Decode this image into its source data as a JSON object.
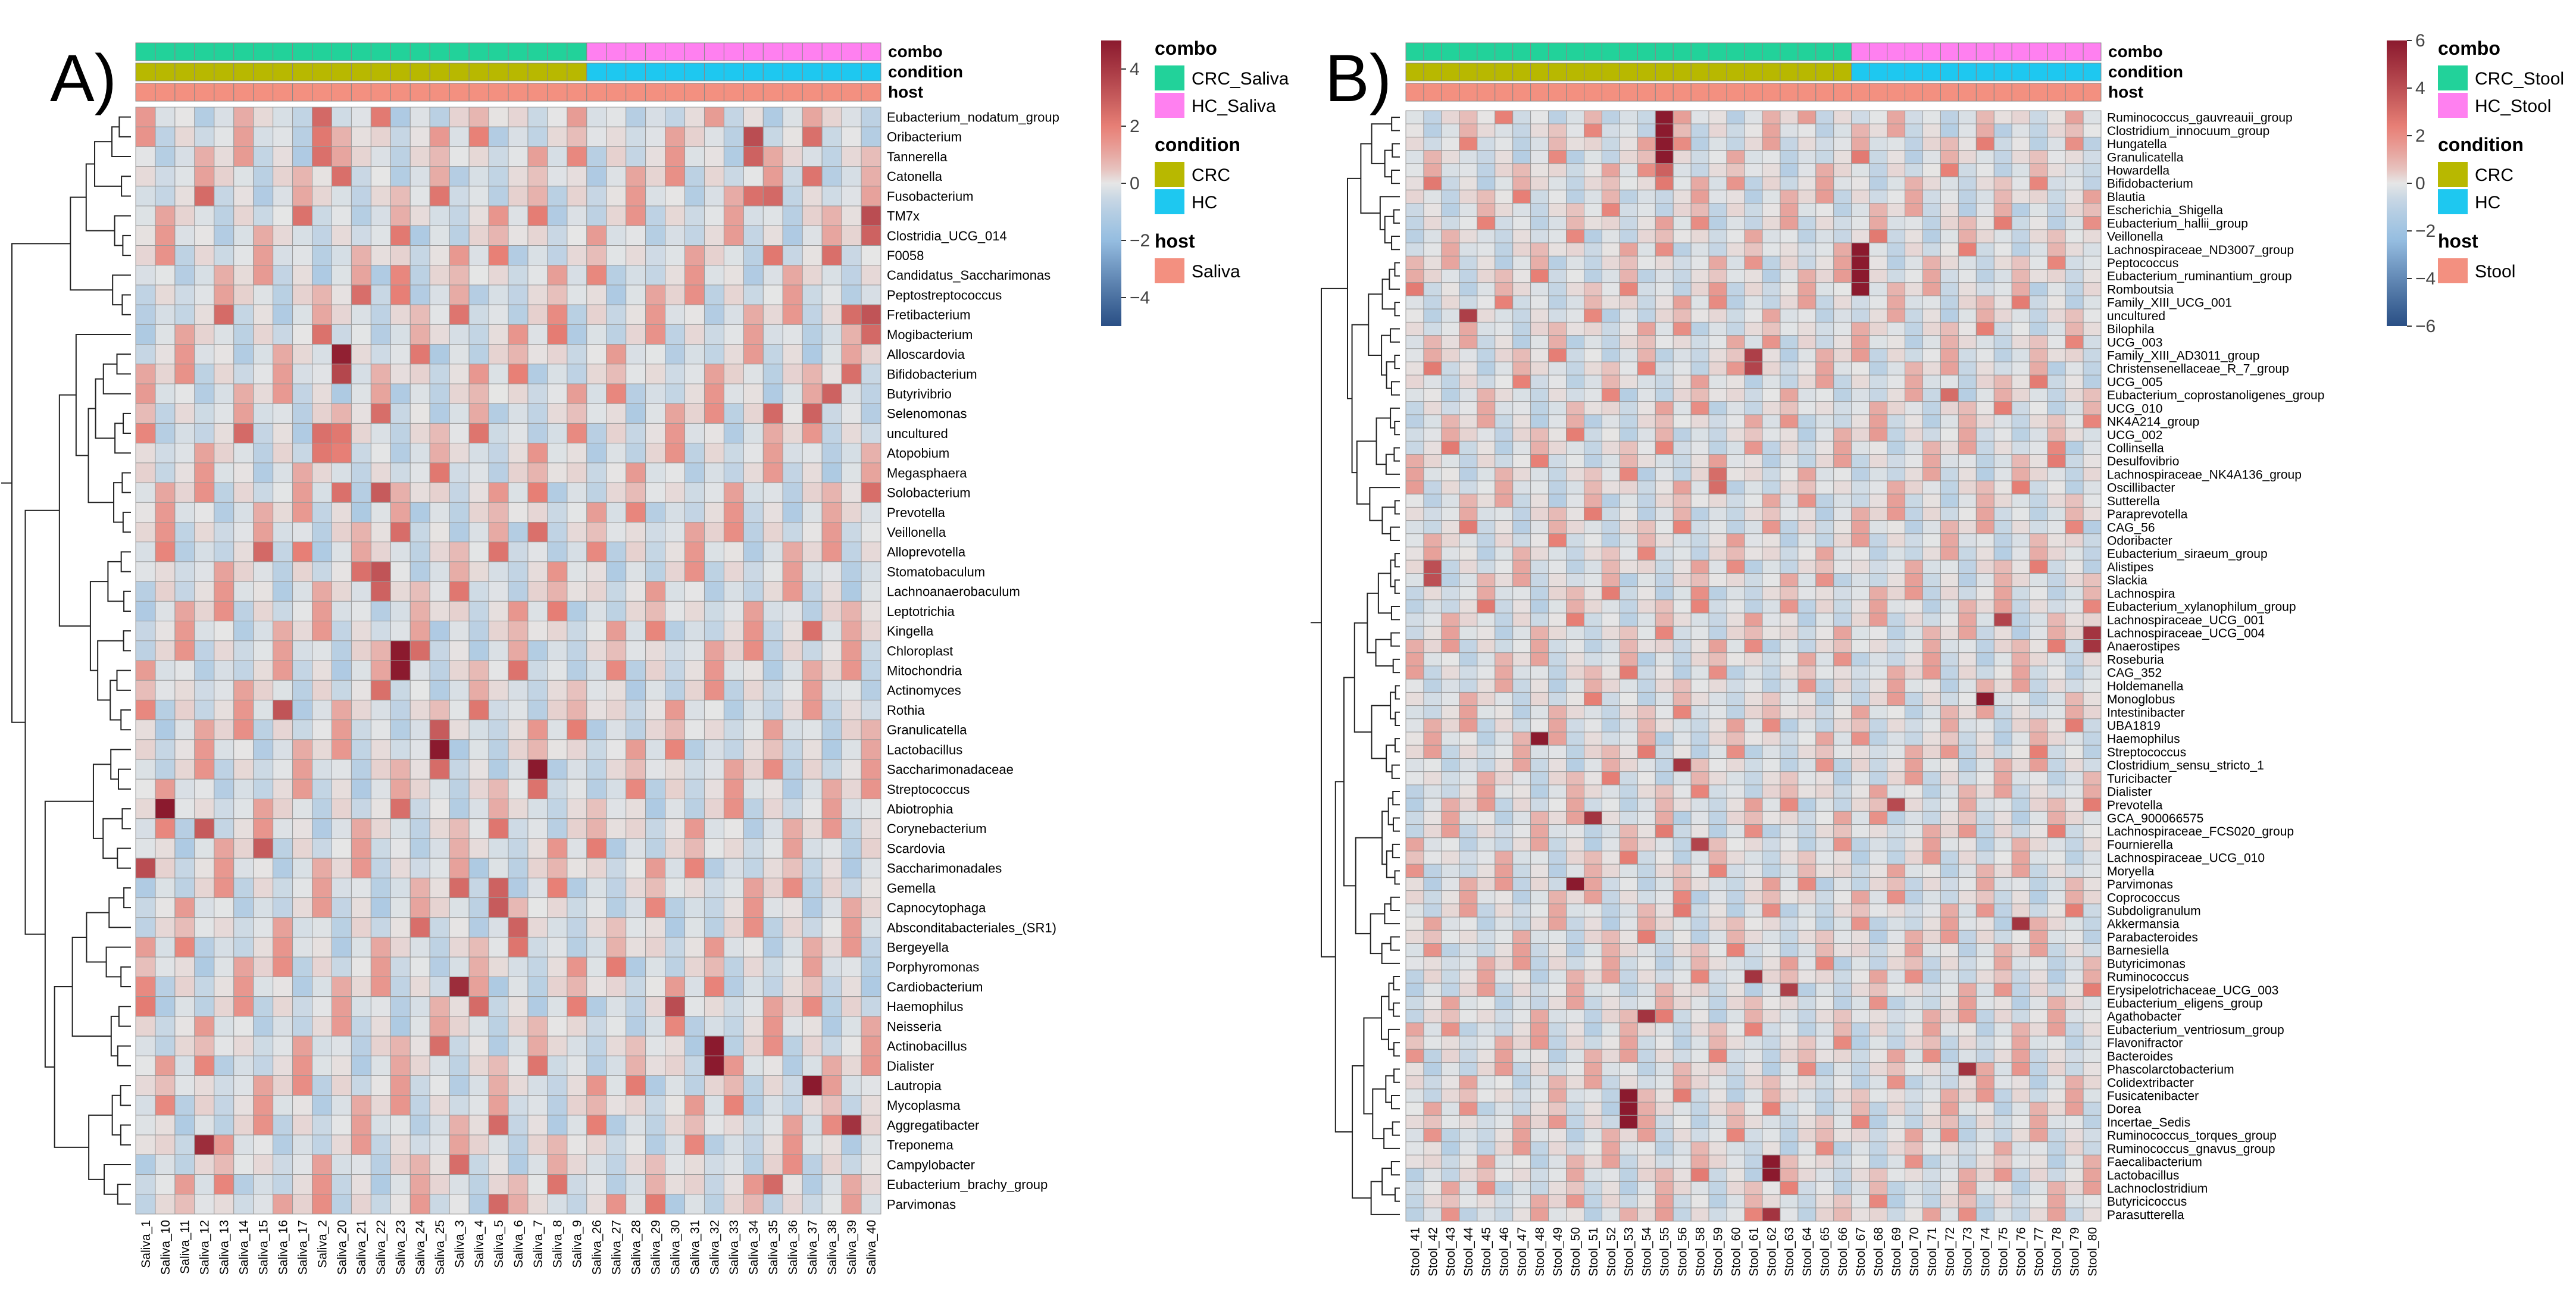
{
  "chart_data": [
    {
      "panel_label": "A)",
      "type": "heatmap",
      "title": "",
      "samples": [
        "Saliva_1",
        "Saliva_10",
        "Saliva_11",
        "Saliva_12",
        "Saliva_13",
        "Saliva_14",
        "Saliva_15",
        "Saliva_16",
        "Saliva_17",
        "Saliva_2",
        "Saliva_20",
        "Saliva_21",
        "Saliva_22",
        "Saliva_23",
        "Saliva_24",
        "Saliva_25",
        "Saliva_3",
        "Saliva_4",
        "Saliva_5",
        "Saliva_6",
        "Saliva_7",
        "Saliva_8",
        "Saliva_9",
        "Saliva_26",
        "Saliva_27",
        "Saliva_28",
        "Saliva_29",
        "Saliva_30",
        "Saliva_31",
        "Saliva_32",
        "Saliva_33",
        "Saliva_34",
        "Saliva_35",
        "Saliva_36",
        "Saliva_37",
        "Saliva_38",
        "Saliva_39",
        "Saliva_40"
      ],
      "taxa": [
        "Eubacterium_nodatum_group",
        "Oribacterium",
        "Tannerella",
        "Catonella",
        "Fusobacterium",
        "TM7x",
        "Clostridia_UCG_014",
        "F0058",
        "Candidatus_Saccharimonas",
        "Peptostreptococcus",
        "Fretibacterium",
        "Mogibacterium",
        "Alloscardovia",
        "Bifidobacterium",
        "Butyrivibrio",
        "Selenomonas",
        "uncultured",
        "Atopobium",
        "Megasphaera",
        "Solobacterium",
        "Prevotella",
        "Veillonella",
        "Alloprevotella",
        "Stomatobaculum",
        "Lachnoanaerobaculum",
        "Leptotrichia",
        "Kingella",
        "Chloroplast",
        "Mitochondria",
        "Actinomyces",
        "Rothia",
        "Granulicatella",
        "Lactobacillus",
        "Saccharimonadaceae",
        "Streptococcus",
        "Abiotrophia",
        "Corynebacterium",
        "Scardovia",
        "Saccharimonadales",
        "Gemella",
        "Capnocytophaga",
        "Absconditabacteriales_(SR1)",
        "Bergeyella",
        "Porphyromonas",
        "Cardiobacterium",
        "Haemophilus",
        "Neisseria",
        "Actinobacillus",
        "Dialister",
        "Lautropia",
        "Mycoplasma",
        "Aggregatibacter",
        "Treponema",
        "Campylobacter",
        "Eubacterium_brachy_group",
        "Parvimonas"
      ],
      "annotation_labels": [
        "combo",
        "condition",
        "host"
      ],
      "annotations": {
        "combo": {
          "split": 23,
          "levels": [
            "CRC_Saliva",
            "HC_Saliva"
          ]
        },
        "condition": {
          "split": 23,
          "levels": [
            "CRC",
            "HC"
          ]
        },
        "host": {
          "levels": [
            "Saliva"
          ]
        }
      },
      "legend": {
        "color_scale_ticks": [
          "4",
          "2",
          "0",
          "−2",
          "−4"
        ],
        "color_range": [
          -5,
          5
        ],
        "combo_title": "combo",
        "combo_items": [
          "CRC_Saliva",
          "HC_Saliva"
        ],
        "condition_title": "condition",
        "condition_items": [
          "CRC",
          "HC"
        ],
        "host_title": "host",
        "host_items": [
          "Saliva"
        ]
      },
      "hotspots": [
        {
          "taxon": "Eubacterium_nodatum_group",
          "sample": "Saliva_2",
          "value": 2.6
        },
        {
          "taxon": "Oribacterium",
          "sample": "Saliva_2",
          "value": 2.2
        },
        {
          "taxon": "Oribacterium",
          "sample": "Saliva_34",
          "value": 3.4
        },
        {
          "taxon": "Tannerella",
          "sample": "Saliva_2",
          "value": 2.4
        },
        {
          "taxon": "Tannerella",
          "sample": "Saliva_34",
          "value": 2.8
        },
        {
          "taxon": "Catonella",
          "sample": "Saliva_37",
          "value": 2.3
        },
        {
          "taxon": "Fusobacterium",
          "sample": "Saliva_34",
          "value": 2.4
        },
        {
          "taxon": "Fusobacterium",
          "sample": "Saliva_35",
          "value": 2.6
        },
        {
          "taxon": "TM7x",
          "sample": "Saliva_40",
          "value": 3.4
        },
        {
          "taxon": "Clostridia_UCG_014",
          "sample": "Saliva_40",
          "value": 2.8
        },
        {
          "taxon": "F0058",
          "sample": "Saliva_35",
          "value": 2.2
        },
        {
          "taxon": "Candidatus_Saccharimonas",
          "sample": "Saliva_23",
          "value": 1.8
        },
        {
          "taxon": "Peptostreptococcus",
          "sample": "Saliva_23",
          "value": 2.0
        },
        {
          "taxon": "Fretibacterium",
          "sample": "Saliva_39",
          "value": 2.5
        },
        {
          "taxon": "Fretibacterium",
          "sample": "Saliva_40",
          "value": 3.2
        },
        {
          "taxon": "Mogibacterium",
          "sample": "Saliva_40",
          "value": 2.6
        },
        {
          "taxon": "Alloscardovia",
          "sample": "Saliva_20",
          "value": 4.8
        },
        {
          "taxon": "Bifidobacterium",
          "sample": "Saliva_20",
          "value": 3.6
        },
        {
          "taxon": "Butyrivibrio",
          "sample": "Saliva_38",
          "value": 2.8
        },
        {
          "taxon": "Selenomonas",
          "sample": "Saliva_35",
          "value": 2.6
        },
        {
          "taxon": "Selenomonas",
          "sample": "Saliva_37",
          "value": 2.8
        },
        {
          "taxon": "uncultured",
          "sample": "Saliva_2",
          "value": 2.4
        },
        {
          "taxon": "uncultured",
          "sample": "Saliva_20",
          "value": 2.2
        },
        {
          "taxon": "Atopobium",
          "sample": "Saliva_2",
          "value": 2.2
        },
        {
          "taxon": "Atopobium",
          "sample": "Saliva_20",
          "value": 2.0
        },
        {
          "taxon": "Solobacterium",
          "sample": "Saliva_20",
          "value": 2.4
        },
        {
          "taxon": "Solobacterium",
          "sample": "Saliva_22",
          "value": 3.0
        },
        {
          "taxon": "Veillonella",
          "sample": "Saliva_7",
          "value": 2.4
        },
        {
          "taxon": "Alloprevotella",
          "sample": "Saliva_17",
          "value": 2.0
        },
        {
          "taxon": "Stomatobaculum",
          "sample": "Saliva_22",
          "value": 3.2
        },
        {
          "taxon": "Lachnoanaerobaculum",
          "sample": "Saliva_22",
          "value": 2.8
        },
        {
          "taxon": "Kingella",
          "sample": "Saliva_37",
          "value": 2.4
        },
        {
          "taxon": "Chloroplast",
          "sample": "Saliva_23",
          "value": 5.0
        },
        {
          "taxon": "Mitochondria",
          "sample": "Saliva_23",
          "value": 5.0
        },
        {
          "taxon": "Rothia",
          "sample": "Saliva_16",
          "value": 3.2
        },
        {
          "taxon": "Granulicatella",
          "sample": "Saliva_25",
          "value": 3.0
        },
        {
          "taxon": "Lactobacillus",
          "sample": "Saliva_25",
          "value": 5.0
        },
        {
          "taxon": "Saccharimonadaceae",
          "sample": "Saliva_7",
          "value": 5.0
        },
        {
          "taxon": "Abiotrophia",
          "sample": "Saliva_10",
          "value": 5.0
        },
        {
          "taxon": "Corynebacterium",
          "sample": "Saliva_12",
          "value": 3.0
        },
        {
          "taxon": "Scardovia",
          "sample": "Saliva_15",
          "value": 3.0
        },
        {
          "taxon": "Saccharimonadales",
          "sample": "Saliva_1",
          "value": 3.4
        },
        {
          "taxon": "Gemella",
          "sample": "Saliva_5",
          "value": 2.8
        },
        {
          "taxon": "Capnocytophaga",
          "sample": "Saliva_5",
          "value": 3.0
        },
        {
          "taxon": "Absconditabacteriales_(SR1)",
          "sample": "Saliva_6",
          "value": 2.8
        },
        {
          "taxon": "Cardiobacterium",
          "sample": "Saliva_3",
          "value": 4.4
        },
        {
          "taxon": "Haemophilus",
          "sample": "Saliva_30",
          "value": 3.4
        },
        {
          "taxon": "Actinobacillus",
          "sample": "Saliva_32",
          "value": 5.0
        },
        {
          "taxon": "Dialister",
          "sample": "Saliva_32",
          "value": 5.0
        },
        {
          "taxon": "Lautropia",
          "sample": "Saliva_37",
          "value": 5.0
        },
        {
          "taxon": "Aggregatibacter",
          "sample": "Saliva_39",
          "value": 4.2
        },
        {
          "taxon": "Treponema",
          "sample": "Saliva_12",
          "value": 4.4
        },
        {
          "taxon": "Eubacterium_brachy_group",
          "sample": "Saliva_35",
          "value": 2.6
        },
        {
          "taxon": "Parvimonas",
          "sample": "Saliva_5",
          "value": 2.6
        }
      ]
    },
    {
      "panel_label": "B)",
      "type": "heatmap",
      "title": "",
      "samples": [
        "Stool_41",
        "Stool_42",
        "Stool_43",
        "Stool_44",
        "Stool_45",
        "Stool_46",
        "Stool_47",
        "Stool_48",
        "Stool_49",
        "Stool_50",
        "Stool_51",
        "Stool_52",
        "Stool_53",
        "Stool_54",
        "Stool_55",
        "Stool_56",
        "Stool_58",
        "Stool_59",
        "Stool_60",
        "Stool_61",
        "Stool_62",
        "Stool_63",
        "Stool_64",
        "Stool_65",
        "Stool_66",
        "Stool_67",
        "Stool_68",
        "Stool_69",
        "Stool_70",
        "Stool_71",
        "Stool_72",
        "Stool_73",
        "Stool_74",
        "Stool_75",
        "Stool_76",
        "Stool_77",
        "Stool_78",
        "Stool_79",
        "Stool_80"
      ],
      "taxa": [
        "Ruminococcus_gauvreauii_group",
        "Clostridium_innocuum_group",
        "Hungatella",
        "Granulicatella",
        "Howardella",
        "Bifidobacterium",
        "Blautia",
        "Escherichia_Shigella",
        "Eubacterium_hallii_group",
        "Veillonella",
        "Lachnospiraceae_ND3007_group",
        "Peptococcus",
        "Eubacterium_ruminantium_group",
        "Romboutsia",
        "Family_XIII_UCG_001",
        "uncultured",
        "Bilophila",
        "UCG_003",
        "Family_XIII_AD3011_group",
        "Christensenellaceae_R_7_group",
        "UCG_005",
        "Eubacterium_coprostanoligenes_group",
        "UCG_010",
        "NK4A214_group",
        "UCG_002",
        "Collinsella",
        "Desulfovibrio",
        "Lachnospiraceae_NK4A136_group",
        "Oscillibacter",
        "Sutterella",
        "Paraprevotella",
        "CAG_56",
        "Odoribacter",
        "Eubacterium_siraeum_group",
        "Alistipes",
        "Slackia",
        "Lachnospira",
        "Eubacterium_xylanophilum_group",
        "Lachnospiraceae_UCG_001",
        "Lachnospiraceae_UCG_004",
        "Anaerostipes",
        "Roseburia",
        "CAG_352",
        "Holdemanella",
        "Monoglobus",
        "Intestinibacter",
        "UBA1819",
        "Haemophilus",
        "Streptococcus",
        "Clostridium_sensu_stricto_1",
        "Turicibacter",
        "Dialister",
        "Prevotella",
        "GCA_900066575",
        "Lachnospiraceae_FCS020_group",
        "Fournierella",
        "Lachnospiraceae_UCG_010",
        "Moryella",
        "Parvimonas",
        "Coprococcus",
        "Subdoligranulum",
        "Akkermansia",
        "Parabacteroides",
        "Barnesiella",
        "Butyricimonas",
        "Ruminococcus",
        "Erysipelotrichaceae_UCG_003",
        "Eubacterium_eligens_group",
        "Agathobacter",
        "Eubacterium_ventriosum_group",
        "Flavonifractor",
        "Bacteroides",
        "Phascolarctobacterium",
        "Colidextribacter",
        "Fusicatenibacter",
        "Dorea",
        "Incertae_Sedis",
        "Ruminococcus_torques_group",
        "Ruminococcus_gnavus_group",
        "Faecalibacterium",
        "Lactobacillus",
        "Lachnoclostridium",
        "Butyricicoccus",
        "Parasutterella"
      ],
      "annotation_labels": [
        "combo",
        "condition",
        "host"
      ],
      "annotations": {
        "combo": {
          "split": 25,
          "levels": [
            "CRC_Stool",
            "HC_Stool"
          ]
        },
        "condition": {
          "split": 25,
          "levels": [
            "CRC",
            "HC"
          ]
        },
        "host": {
          "levels": [
            "Stool"
          ]
        }
      },
      "legend": {
        "color_scale_ticks": [
          "6",
          "4",
          "2",
          "0",
          "−2",
          "−4",
          "−6"
        ],
        "color_range": [
          -6,
          6
        ],
        "combo_title": "combo",
        "combo_items": [
          "CRC_Stool",
          "HC_Stool"
        ],
        "condition_title": "condition",
        "condition_items": [
          "CRC",
          "HC"
        ],
        "host_title": "host",
        "host_items": [
          "Stool"
        ]
      },
      "hotspots": [
        {
          "taxon": "Ruminococcus_gauvreauii_group",
          "sample": "Stool_55",
          "value": 6.0
        },
        {
          "taxon": "Clostridium_innocuum_group",
          "sample": "Stool_55",
          "value": 6.0
        },
        {
          "taxon": "Hungatella",
          "sample": "Stool_55",
          "value": 6.0
        },
        {
          "taxon": "Granulicatella",
          "sample": "Stool_55",
          "value": 6.0
        },
        {
          "taxon": "Howardella",
          "sample": "Stool_55",
          "value": 3.4
        },
        {
          "taxon": "Bifidobacterium",
          "sample": "Stool_55",
          "value": 2.6
        },
        {
          "taxon": "Lachnospiraceae_ND3007_group",
          "sample": "Stool_67",
          "value": 6.0
        },
        {
          "taxon": "Peptococcus",
          "sample": "Stool_67",
          "value": 6.0
        },
        {
          "taxon": "Eubacterium_ruminantium_group",
          "sample": "Stool_67",
          "value": 6.0
        },
        {
          "taxon": "Romboutsia",
          "sample": "Stool_67",
          "value": 6.0
        },
        {
          "taxon": "uncultured",
          "sample": "Stool_44",
          "value": 4.6
        },
        {
          "taxon": "Family_XIII_AD3011_group",
          "sample": "Stool_61",
          "value": 4.6
        },
        {
          "taxon": "Christensenellaceae_R_7_group",
          "sample": "Stool_61",
          "value": 4.4
        },
        {
          "taxon": "Eubacterium_coprostanoligenes_group",
          "sample": "Stool_72",
          "value": 3.0
        },
        {
          "taxon": "Lachnospiraceae_NK4A136_group",
          "sample": "Stool_59",
          "value": 3.0
        },
        {
          "taxon": "Oscillibacter",
          "sample": "Stool_59",
          "value": 3.0
        },
        {
          "taxon": "Alistipes",
          "sample": "Stool_42",
          "value": 4.0
        },
        {
          "taxon": "Slackia",
          "sample": "Stool_42",
          "value": 4.0
        },
        {
          "taxon": "Lachnospiraceae_UCG_001",
          "sample": "Stool_75",
          "value": 4.4
        },
        {
          "taxon": "Lachnospiraceae_UCG_004",
          "sample": "Stool_80",
          "value": 5.0
        },
        {
          "taxon": "Anaerostipes",
          "sample": "Stool_80",
          "value": 5.0
        },
        {
          "taxon": "Monoglobus",
          "sample": "Stool_74",
          "value": 6.0
        },
        {
          "taxon": "Haemophilus",
          "sample": "Stool_48",
          "value": 6.0
        },
        {
          "taxon": "Clostridium_sensu_stricto_1",
          "sample": "Stool_56",
          "value": 5.0
        },
        {
          "taxon": "Prevotella",
          "sample": "Stool_69",
          "value": 4.2
        },
        {
          "taxon": "GCA_900066575",
          "sample": "Stool_51",
          "value": 5.0
        },
        {
          "taxon": "Fournierella",
          "sample": "Stool_58",
          "value": 4.4
        },
        {
          "taxon": "Parvimonas",
          "sample": "Stool_50",
          "value": 6.0
        },
        {
          "taxon": "Akkermansia",
          "sample": "Stool_76",
          "value": 5.0
        },
        {
          "taxon": "Ruminococcus",
          "sample": "Stool_61",
          "value": 5.0
        },
        {
          "taxon": "Erysipelotrichaceae_UCG_003",
          "sample": "Stool_63",
          "value": 4.6
        },
        {
          "taxon": "Agathobacter",
          "sample": "Stool_54",
          "value": 5.0
        },
        {
          "taxon": "Phascolarctobacterium",
          "sample": "Stool_73",
          "value": 5.0
        },
        {
          "taxon": "Fusicatenibacter",
          "sample": "Stool_53",
          "value": 6.0
        },
        {
          "taxon": "Dorea",
          "sample": "Stool_53",
          "value": 6.0
        },
        {
          "taxon": "Incertae_Sedis",
          "sample": "Stool_53",
          "value": 6.0
        },
        {
          "taxon": "Faecalibacterium",
          "sample": "Stool_62",
          "value": 6.0
        },
        {
          "taxon": "Lactobacillus",
          "sample": "Stool_62",
          "value": 6.0
        },
        {
          "taxon": "Parasutterella",
          "sample": "Stool_62",
          "value": 5.0
        }
      ]
    }
  ],
  "colors": {
    "combo_crc": "#22d29a",
    "combo_hc": "#ff80f0",
    "condition_crc": "#b8b800",
    "condition_hc": "#1ec8f0",
    "host": "#f39080",
    "scale_high": "#8b1a2e",
    "scale_mid": "#e6e6e6",
    "scale_low": "#2a4f85"
  }
}
